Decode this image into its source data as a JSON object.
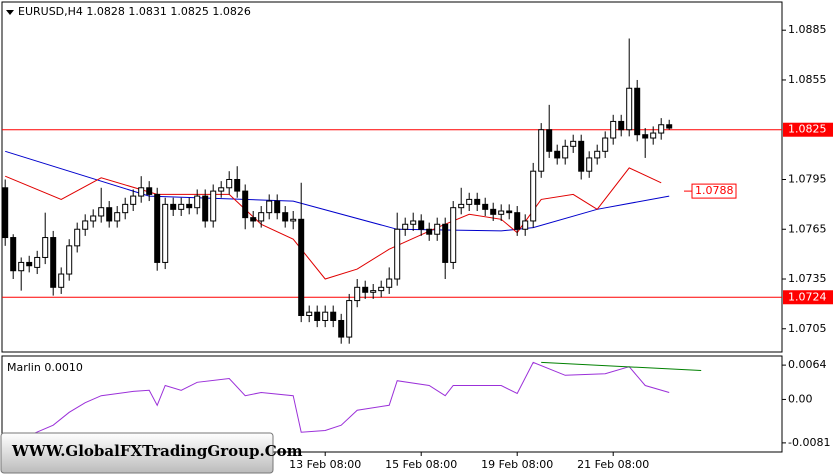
{
  "chart_data": [
    {
      "type": "candlestick",
      "title": "EURUSD,H4  1.0828 1.0831 1.0825 1.0826",
      "ohlc": [
        [
          1.079,
          1.0795,
          1.0755,
          1.076
        ],
        [
          1.076,
          1.0762,
          1.0735,
          1.074
        ],
        [
          1.074,
          1.0748,
          1.0728,
          1.0745
        ],
        [
          1.0745,
          1.0749,
          1.0739,
          1.0743
        ],
        [
          1.0742,
          1.0752,
          1.0738,
          1.0748
        ],
        [
          1.0748,
          1.0775,
          1.0744,
          1.076
        ],
        [
          1.076,
          1.0764,
          1.0725,
          1.073
        ],
        [
          1.073,
          1.0742,
          1.0726,
          1.0738
        ],
        [
          1.0738,
          1.0759,
          1.0734,
          1.0755
        ],
        [
          1.0755,
          1.0769,
          1.0751,
          1.0765
        ],
        [
          1.0765,
          1.0774,
          1.0761,
          1.077
        ],
        [
          1.077,
          1.0777,
          1.0766,
          1.0773
        ],
        [
          1.0773,
          1.079,
          1.0769,
          1.0778
        ],
        [
          1.0778,
          1.0782,
          1.0766,
          1.077
        ],
        [
          1.077,
          1.0779,
          1.0766,
          1.0775
        ],
        [
          1.0775,
          1.0784,
          1.0771,
          1.078
        ],
        [
          1.078,
          1.0789,
          1.0776,
          1.0785
        ],
        [
          1.0785,
          1.0797,
          1.0781,
          1.079
        ],
        [
          1.079,
          1.0794,
          1.0782,
          1.0786
        ],
        [
          1.0786,
          1.079,
          1.074,
          1.0745
        ],
        [
          1.0745,
          1.0784,
          1.0741,
          1.078
        ],
        [
          1.078,
          1.0784,
          1.0773,
          1.0777
        ],
        [
          1.0777,
          1.0784,
          1.0773,
          1.078
        ],
        [
          1.078,
          1.0784,
          1.0774,
          1.0778
        ],
        [
          1.0778,
          1.0789,
          1.0774,
          1.0785
        ],
        [
          1.0785,
          1.0789,
          1.0766,
          1.077
        ],
        [
          1.077,
          1.0792,
          1.0766,
          1.0788
        ],
        [
          1.0788,
          1.0794,
          1.0784,
          1.079
        ],
        [
          1.079,
          1.08,
          1.0786,
          1.0795
        ],
        [
          1.0795,
          1.0803,
          1.0784,
          1.0788
        ],
        [
          1.0788,
          1.0792,
          1.0765,
          1.0772
        ],
        [
          1.0772,
          1.0776,
          1.0766,
          1.077
        ],
        [
          1.077,
          1.0779,
          1.0766,
          1.0775
        ],
        [
          1.0775,
          1.0786,
          1.0771,
          1.0782
        ],
        [
          1.0782,
          1.0786,
          1.0771,
          1.0775
        ],
        [
          1.0775,
          1.0779,
          1.0766,
          1.077
        ],
        [
          1.077,
          1.0776,
          1.0765,
          1.0771
        ],
        [
          1.0771,
          1.0793,
          1.0709,
          1.0713
        ],
        [
          1.0713,
          1.0719,
          1.0709,
          1.0715
        ],
        [
          1.0715,
          1.0719,
          1.0706,
          1.071
        ],
        [
          1.071,
          1.0719,
          1.0706,
          1.0715
        ],
        [
          1.0715,
          1.0719,
          1.0706,
          1.071
        ],
        [
          1.071,
          1.0714,
          1.0696,
          1.07
        ],
        [
          1.07,
          1.0726,
          1.0696,
          1.0722
        ],
        [
          1.0722,
          1.0735,
          1.0718,
          1.073
        ],
        [
          1.073,
          1.0734,
          1.0723,
          1.0727
        ],
        [
          1.0727,
          1.0732,
          1.0723,
          1.0728
        ],
        [
          1.0728,
          1.0734,
          1.0724,
          1.073
        ],
        [
          1.073,
          1.0742,
          1.0726,
          1.0735
        ],
        [
          1.0735,
          1.0775,
          1.0731,
          1.0765
        ],
        [
          1.0765,
          1.0772,
          1.0761,
          1.0768
        ],
        [
          1.0768,
          1.0775,
          1.0764,
          1.077
        ],
        [
          1.077,
          1.0774,
          1.0761,
          1.0765
        ],
        [
          1.0765,
          1.0769,
          1.0758,
          1.0762
        ],
        [
          1.0762,
          1.0772,
          1.0758,
          1.0768
        ],
        [
          1.0768,
          1.0772,
          1.0735,
          1.0745
        ],
        [
          1.0745,
          1.0782,
          1.0741,
          1.0778
        ],
        [
          1.0778,
          1.079,
          1.0774,
          1.078
        ],
        [
          1.078,
          1.0787,
          1.0776,
          1.0783
        ],
        [
          1.0783,
          1.0787,
          1.0776,
          1.078
        ],
        [
          1.078,
          1.0784,
          1.0773,
          1.0777
        ],
        [
          1.0777,
          1.0781,
          1.077,
          1.0774
        ],
        [
          1.0774,
          1.078,
          1.077,
          1.0776
        ],
        [
          1.0776,
          1.078,
          1.0771,
          1.0775
        ],
        [
          1.0775,
          1.0779,
          1.0761,
          1.0765
        ],
        [
          1.0765,
          1.0774,
          1.0761,
          1.077
        ],
        [
          1.077,
          1.0805,
          1.0766,
          1.08
        ],
        [
          1.08,
          1.0829,
          1.0796,
          1.0825
        ],
        [
          1.0825,
          1.084,
          1.0808,
          1.0812
        ],
        [
          1.0812,
          1.0816,
          1.0804,
          1.0808
        ],
        [
          1.0808,
          1.0819,
          1.0804,
          1.0815
        ],
        [
          1.0815,
          1.0822,
          1.0811,
          1.0818
        ],
        [
          1.0818,
          1.0822,
          1.0795,
          1.08
        ],
        [
          1.08,
          1.0812,
          1.0796,
          1.0808
        ],
        [
          1.0808,
          1.0816,
          1.0804,
          1.0812
        ],
        [
          1.0812,
          1.0824,
          1.0808,
          1.082
        ],
        [
          1.082,
          1.0834,
          1.0816,
          1.083
        ],
        [
          1.083,
          1.0834,
          1.0821,
          1.0825
        ],
        [
          1.0825,
          1.088,
          1.0821,
          1.085
        ],
        [
          1.085,
          1.0855,
          1.0818,
          1.0822
        ],
        [
          1.0822,
          1.0826,
          1.0808,
          1.082
        ],
        [
          1.082,
          1.0827,
          1.0816,
          1.0823
        ],
        [
          1.0823,
          1.0832,
          1.0819,
          1.0828
        ],
        [
          1.0828,
          1.0831,
          1.0825,
          1.0826
        ]
      ],
      "up_color": "#ffffff",
      "down_color": "#000000",
      "xlim": [
        -0.4,
        97.1
      ],
      "xticks": [
        {
          "value": 40,
          "label": "13 Feb 08:00"
        },
        {
          "value": 52,
          "label": "15 Feb 08:00"
        },
        {
          "value": 64,
          "label": "19 Feb 08:00"
        },
        {
          "value": 76,
          "label": "21 Feb 08:00"
        }
      ],
      "ylim": [
        1.0691,
        1.0902
      ],
      "yticks": [
        1.0885,
        1.0855,
        1.0795,
        1.0765,
        1.0735,
        1.0705
      ],
      "lines": [
        {
          "color": "#0000cc",
          "x": [
            0,
            18,
            36,
            49,
            62,
            66,
            74,
            83
          ],
          "values": [
            1.0812,
            1.0785,
            1.0782,
            1.0765,
            1.0764,
            1.0766,
            1.0777,
            1.0785
          ]
        },
        {
          "color": "#e00000",
          "x": [
            0,
            7,
            12,
            19,
            28,
            32,
            36,
            40,
            44,
            48,
            54,
            58,
            62,
            64,
            67,
            71,
            74,
            78,
            82
          ],
          "values": [
            1.0797,
            1.0783,
            1.0796,
            1.0786,
            1.0786,
            1.0768,
            1.0759,
            1.0735,
            1.0741,
            1.0753,
            1.0766,
            1.0774,
            1.0771,
            1.0763,
            1.0783,
            1.0786,
            1.0777,
            1.0802,
            1.0793
          ]
        }
      ],
      "hlines": [
        1.0825,
        1.0724
      ],
      "hline_color": "#ff0000",
      "price_label": 1.0788
    },
    {
      "type": "line",
      "title": "Marlin 0.0010",
      "color": "#9b30d9",
      "xlim": [
        -0.4,
        97.1
      ],
      "x": [
        0,
        3,
        6,
        8,
        10,
        12,
        16,
        18,
        19,
        20,
        22,
        24,
        28,
        30,
        32,
        36,
        37,
        40,
        42,
        44,
        48,
        49,
        53,
        55,
        56,
        62,
        64,
        66,
        70,
        75,
        78,
        80,
        83
      ],
      "values": [
        -0.0086,
        -0.0067,
        -0.0048,
        -0.0024,
        -0.0006,
        0.0007,
        0.0015,
        0.0017,
        -0.0011,
        0.0026,
        0.0017,
        0.0032,
        0.0039,
        0.0007,
        0.0013,
        0.0007,
        -0.0061,
        -0.0058,
        -0.0048,
        -0.002,
        -0.0011,
        0.0035,
        0.0026,
        0.0007,
        0.0026,
        0.0026,
        0.0011,
        0.0069,
        0.0045,
        0.0048,
        0.0061,
        0.0026,
        0.0013
      ],
      "ylim": [
        -0.0098,
        0.0081
      ],
      "yticks": [
        0.0064,
        {
          "value": 0,
          "label": "0.00"
        },
        -0.0081
      ],
      "trendline": {
        "color": "#008000",
        "x": [
          67,
          87
        ],
        "values": [
          0.0069,
          0.0054
        ]
      }
    }
  ],
  "watermark": "WWW.GlobalFXTradingGroup.Com"
}
